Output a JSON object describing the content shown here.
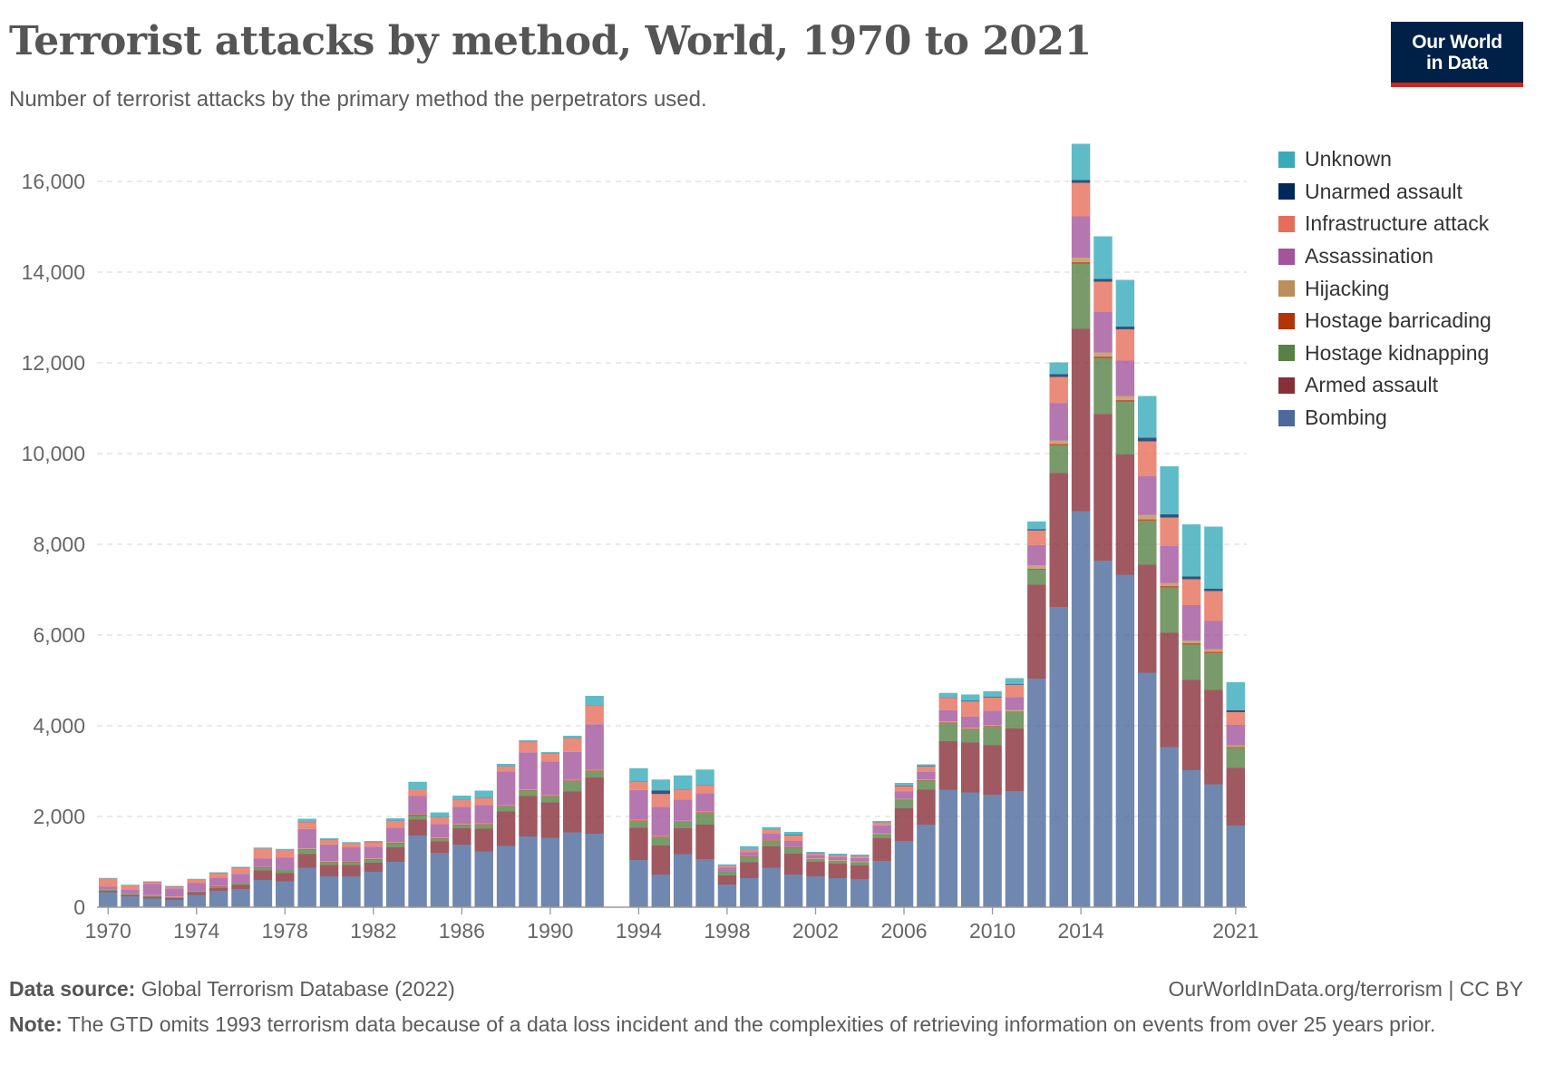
{
  "title": "Terrorist attacks by method, World, 1970 to 2021",
  "subtitle": "Number of terrorist attacks by the primary method the perpetrators used.",
  "logo": {
    "line1": "Our World",
    "line2": "in Data",
    "background": "#002147",
    "accent": "#ce261e"
  },
  "footer": {
    "source_label": "Data source:",
    "source_text": "Global Terrorism Database (2022)",
    "license": "OurWorldInData.org/terrorism | CC BY",
    "note_label": "Note:",
    "note_text": "The GTD omits 1993 terrorism data because of a data loss incident and the complexities of retrieving information on events from over 25 years prior."
  },
  "chart_data": {
    "type": "bar",
    "stacked": true,
    "title": "Terrorist attacks by method, World, 1970 to 2021",
    "subtitle": "Number of terrorist attacks by the primary method the perpetrators used.",
    "xlabel": "",
    "ylabel": "",
    "ylim": [
      0,
      16800
    ],
    "yticks": [
      0,
      2000,
      4000,
      6000,
      8000,
      10000,
      12000,
      14000,
      16000
    ],
    "ytick_labels": [
      "0",
      "2,000",
      "4,000",
      "6,000",
      "8,000",
      "10,000",
      "12,000",
      "14,000",
      "16,000"
    ],
    "xtick_labels": [
      "1970",
      "1974",
      "1978",
      "1982",
      "1986",
      "1990",
      "1994",
      "1998",
      "2002",
      "2006",
      "2010",
      "2014",
      "2021"
    ],
    "grid": "horizontal-dashed",
    "legend_position": "right",
    "categories": [
      1970,
      1971,
      1972,
      1973,
      1974,
      1975,
      1976,
      1977,
      1978,
      1979,
      1980,
      1981,
      1982,
      1983,
      1984,
      1985,
      1986,
      1987,
      1988,
      1989,
      1990,
      1991,
      1992,
      1993,
      1994,
      1995,
      1996,
      1997,
      1998,
      1999,
      2000,
      2001,
      2002,
      2003,
      2004,
      2005,
      2006,
      2007,
      2008,
      2009,
      2010,
      2011,
      2012,
      2013,
      2014,
      2015,
      2016,
      2017,
      2018,
      2019,
      2020,
      2021
    ],
    "series": [
      {
        "name": "Bombing",
        "color": "#4c6a9c",
        "values": [
          330,
          240,
          190,
          160,
          270,
          360,
          400,
          600,
          570,
          870,
          680,
          680,
          780,
          1000,
          1580,
          1200,
          1380,
          1230,
          1350,
          1560,
          1530,
          1650,
          1620,
          null,
          1040,
          720,
          1170,
          1060,
          500,
          640,
          870,
          720,
          680,
          640,
          620,
          1020,
          1460,
          1820,
          2590,
          2530,
          2480,
          2560,
          5040,
          6620,
          8730,
          7640,
          7330,
          5170,
          3530,
          3020,
          2710,
          1800
        ]
      },
      {
        "name": "Armed assault",
        "color": "#883039",
        "values": [
          30,
          30,
          40,
          40,
          60,
          60,
          90,
          210,
          180,
          300,
          250,
          250,
          200,
          320,
          350,
          250,
          360,
          500,
          760,
          890,
          780,
          900,
          1240,
          null,
          710,
          640,
          570,
          760,
          200,
          350,
          470,
          460,
          320,
          320,
          300,
          500,
          720,
          770,
          1070,
          1100,
          1090,
          1380,
          2070,
          2950,
          4020,
          3230,
          2650,
          2380,
          2520,
          1990,
          2080,
          1270
        ]
      },
      {
        "name": "Hostage kidnapping",
        "color": "#578145",
        "values": [
          20,
          20,
          20,
          20,
          20,
          30,
          30,
          60,
          70,
          100,
          60,
          60,
          70,
          90,
          90,
          60,
          70,
          90,
          110,
          120,
          130,
          230,
          140,
          null,
          150,
          180,
          140,
          260,
          80,
          120,
          120,
          130,
          60,
          60,
          70,
          90,
          180,
          200,
          400,
          290,
          410,
          360,
          330,
          610,
          1430,
          1230,
          1160,
          970,
          1000,
          780,
          810,
          440
        ]
      },
      {
        "name": "Hostage barricading",
        "color": "#b13507",
        "values": [
          5,
          5,
          5,
          5,
          5,
          10,
          10,
          10,
          10,
          15,
          15,
          10,
          15,
          15,
          20,
          15,
          15,
          15,
          15,
          15,
          15,
          15,
          15,
          null,
          15,
          15,
          15,
          15,
          10,
          10,
          10,
          10,
          5,
          5,
          5,
          5,
          10,
          10,
          15,
          15,
          15,
          15,
          25,
          30,
          40,
          40,
          40,
          30,
          30,
          30,
          30,
          20
        ]
      },
      {
        "name": "Hijacking",
        "color": "#bc8e5a",
        "values": [
          5,
          5,
          10,
          10,
          5,
          5,
          5,
          10,
          10,
          10,
          10,
          10,
          10,
          10,
          10,
          10,
          10,
          10,
          10,
          10,
          10,
          10,
          10,
          null,
          10,
          10,
          10,
          10,
          10,
          10,
          10,
          10,
          10,
          10,
          10,
          10,
          20,
          20,
          20,
          20,
          20,
          30,
          70,
          80,
          100,
          90,
          90,
          100,
          70,
          60,
          60,
          40
        ]
      },
      {
        "name": "Assassination",
        "color": "#a2559c",
        "values": [
          60,
          80,
          250,
          180,
          170,
          190,
          200,
          180,
          250,
          430,
          370,
          310,
          260,
          320,
          400,
          300,
          380,
          410,
          750,
          820,
          750,
          620,
          1010,
          null,
          660,
          650,
          470,
          410,
          70,
          80,
          140,
          130,
          80,
          80,
          80,
          180,
          160,
          160,
          250,
          250,
          320,
          290,
          450,
          820,
          910,
          890,
          780,
          850,
          810,
          780,
          620,
          450
        ]
      },
      {
        "name": "Infrastructure attack",
        "color": "#e56e5a",
        "values": [
          180,
          100,
          40,
          40,
          80,
          100,
          140,
          220,
          160,
          150,
          110,
          90,
          100,
          150,
          150,
          150,
          160,
          150,
          110,
          230,
          180,
          300,
          420,
          null,
          180,
          280,
          220,
          170,
          40,
          60,
          80,
          120,
          30,
          30,
          40,
          60,
          120,
          120,
          270,
          330,
          290,
          270,
          320,
          580,
          740,
          670,
          690,
          770,
          630,
          570,
          660,
          280
        ]
      },
      {
        "name": "Unarmed assault",
        "color": "#00295b",
        "values": [
          5,
          5,
          5,
          5,
          5,
          5,
          5,
          5,
          5,
          5,
          5,
          5,
          5,
          5,
          5,
          5,
          5,
          5,
          5,
          5,
          5,
          5,
          5,
          null,
          10,
          80,
          10,
          10,
          5,
          5,
          5,
          10,
          5,
          5,
          5,
          5,
          10,
          10,
          10,
          15,
          15,
          15,
          30,
          60,
          60,
          60,
          60,
          80,
          70,
          60,
          50,
          40
        ]
      },
      {
        "name": "Unknown",
        "color": "#38aaba",
        "values": [
          10,
          10,
          10,
          10,
          10,
          10,
          10,
          20,
          30,
          70,
          20,
          20,
          20,
          50,
          160,
          100,
          80,
          160,
          50,
          30,
          20,
          50,
          200,
          null,
          290,
          240,
          300,
          340,
          30,
          70,
          60,
          70,
          30,
          30,
          30,
          30,
          60,
          40,
          100,
          140,
          120,
          130,
          170,
          260,
          800,
          940,
          1030,
          920,
          1060,
          1150,
          1370,
          620
        ]
      }
    ]
  }
}
